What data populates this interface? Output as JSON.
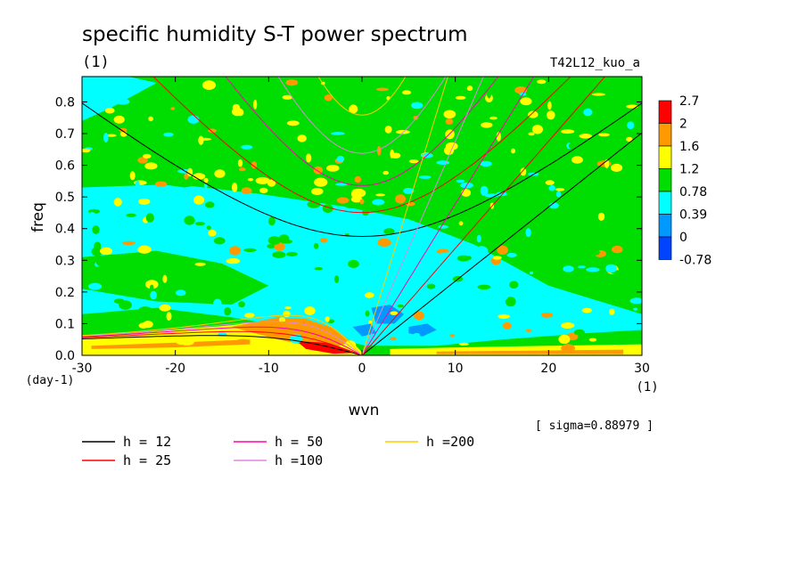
{
  "chart_data": {
    "type": "heatmap",
    "title": "specific humidity S-T power spectrum",
    "units_label": "(1)",
    "run_label": "T42L12_kuo_a",
    "xlabel": "wvn",
    "ylabel": "freq",
    "x_units": "(1)",
    "y_units": "(day-1)",
    "xlim": [
      -30,
      30
    ],
    "ylim": [
      0,
      0.88
    ],
    "x_ticks": [
      -30,
      -20,
      -10,
      0,
      10,
      20,
      30
    ],
    "x_tick_labels": [
      "-30",
      "-20",
      "-10",
      "0",
      "10",
      "20",
      "30"
    ],
    "y_ticks": [
      0,
      0.1,
      0.2,
      0.3,
      0.4,
      0.5,
      0.6,
      0.7,
      0.8
    ],
    "y_tick_labels": [
      "0.0",
      "0.1",
      "0.2",
      "0.3",
      "0.4",
      "0.5",
      "0.6",
      "0.7",
      "0.8"
    ],
    "sigma_label": "[ sigma=0.88979 ]",
    "colorbar": {
      "levels": [
        "2.7",
        "2",
        "1.6",
        "1.2",
        "0.78",
        "0.39",
        "0",
        "-0.78"
      ],
      "colors": [
        "#ff0000",
        "#ff9900",
        "#ffff00",
        "#00dd00",
        "#00ffff",
        "#0099ff",
        "#0044ff"
      ]
    },
    "field_colors": {
      "blue": "#0099ff",
      "cyan": "#00ffff",
      "green": "#00dd00",
      "yellow": "#ffff00",
      "orange": "#ff9900",
      "red": "#ff0000"
    },
    "series": [
      {
        "name": "h = 12",
        "h": 12,
        "color": "#000000"
      },
      {
        "name": "h = 25",
        "h": 25,
        "color": "#ff0000"
      },
      {
        "name": "h = 50",
        "h": 50,
        "color": "#ff00aa"
      },
      {
        "name": "h =100",
        "h": 100,
        "color": "#dd88dd"
      },
      {
        "name": "h =200",
        "h": 200,
        "color": "#ffcc00"
      }
    ]
  }
}
